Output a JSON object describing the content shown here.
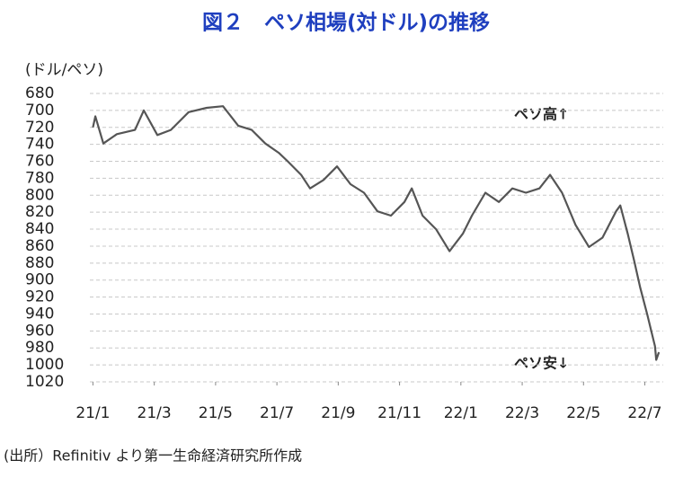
{
  "chart_data": {
    "type": "line",
    "title": "図２　ペソ相場(対ドル)の推移",
    "y_axis_label": "(ドル/ペソ)",
    "annotations": [
      "ペソ高↑",
      "ペソ安↓"
    ],
    "source": "(出所）Refinitiv より第一生命経済研究所作成",
    "x": [
      0.0,
      0.08,
      0.34,
      0.78,
      1.37,
      1.66,
      2.1,
      2.54,
      3.12,
      3.71,
      4.24,
      4.74,
      5.18,
      5.62,
      6.06,
      6.35,
      6.79,
      7.08,
      7.52,
      7.96,
      8.4,
      8.84,
      9.28,
      9.72,
      10.16,
      10.4,
      10.75,
      11.19,
      11.63,
      12.07,
      12.36,
      12.8,
      13.24,
      13.68,
      14.12,
      14.56,
      14.91,
      15.3,
      15.74,
      16.18,
      16.62,
      17.06,
      17.2,
      17.44,
      17.65,
      17.85,
      18.08,
      18.33,
      18.37,
      18.46
    ],
    "series": [
      {
        "name": "ペソ相場",
        "color": "#555555",
        "values": [
          720,
          707,
          739,
          728,
          723,
          700,
          729,
          723,
          702,
          697,
          695,
          718,
          723,
          739,
          750,
          760,
          776,
          792,
          782,
          766,
          787,
          797,
          819,
          824,
          808,
          792,
          824,
          840,
          866,
          845,
          824,
          797,
          808,
          792,
          797,
          792,
          776,
          797,
          835,
          861,
          850,
          819,
          812,
          845,
          877,
          909,
          941,
          978,
          994,
          985
        ]
      }
    ],
    "xlim": [
      -0.1,
      18.6
    ],
    "xticks": [
      {
        "value": 0,
        "label": "21/1"
      },
      {
        "value": 2,
        "label": "21/3"
      },
      {
        "value": 4,
        "label": "21/5"
      },
      {
        "value": 6,
        "label": "21/7"
      },
      {
        "value": 8,
        "label": "21/9"
      },
      {
        "value": 10,
        "label": "21/11"
      },
      {
        "value": 12,
        "label": "22/1"
      },
      {
        "value": 14,
        "label": "22/3"
      },
      {
        "value": 16,
        "label": "22/5"
      },
      {
        "value": 18,
        "label": "22/7"
      }
    ],
    "ylim": [
      680,
      1020
    ],
    "yticks": [
      680,
      700,
      720,
      740,
      760,
      780,
      800,
      820,
      840,
      860,
      880,
      900,
      920,
      940,
      960,
      980,
      1000,
      1020
    ],
    "y_inverted": true,
    "grid": true
  }
}
